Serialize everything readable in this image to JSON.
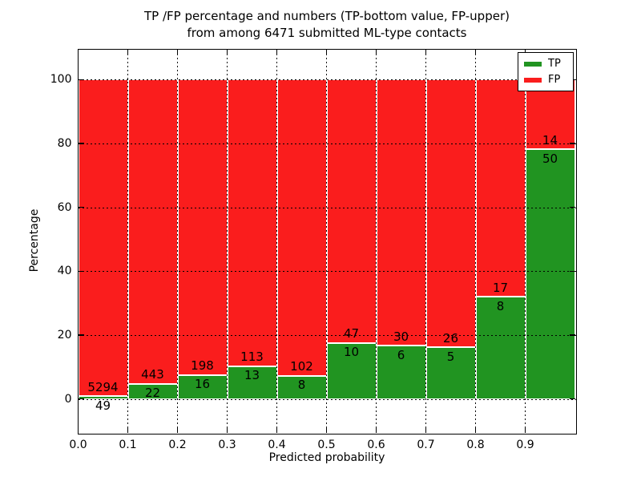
{
  "figure": {
    "title_line1": "TP /FP percentage and numbers (TP-bottom value, FP-upper)",
    "title_line2": "from among 6471 submitted ML-type contacts",
    "xlabel": "Predicted probability",
    "ylabel": "Percentage"
  },
  "legend": {
    "position": "upper right",
    "entries": [
      {
        "label": "TP",
        "color": "#219421"
      },
      {
        "label": "FP",
        "color": "#fa1d1d"
      }
    ]
  },
  "chart_data": {
    "type": "bar",
    "stacked": true,
    "normalized_to_percent": true,
    "title": "TP /FP percentage and numbers (TP-bottom value, FP-upper) from among 6471 submitted ML-type contacts",
    "xlabel": "Predicted probability",
    "ylabel": "Percentage",
    "total_contacts": 6471,
    "bins": [
      "0.0-0.1",
      "0.1-0.2",
      "0.2-0.3",
      "0.3-0.4",
      "0.4-0.5",
      "0.5-0.6",
      "0.6-0.7",
      "0.7-0.8",
      "0.8-0.9",
      "0.9-1.0"
    ],
    "x_tick_labels": [
      "0.0",
      "0.1",
      "0.2",
      "0.3",
      "0.4",
      "0.5",
      "0.6",
      "0.7",
      "0.8",
      "0.9"
    ],
    "y_tick_values": [
      0,
      20,
      40,
      60,
      80,
      100
    ],
    "xlim": [
      0.0,
      1.0
    ],
    "ylim": [
      -10.5,
      109.5
    ],
    "grid": "dotted, both axes, drawn over bars",
    "legend_position": "upper right",
    "series": [
      {
        "name": "TP",
        "color": "#219421",
        "counts": [
          49,
          22,
          16,
          13,
          8,
          10,
          6,
          5,
          8,
          50
        ]
      },
      {
        "name": "FP",
        "color": "#fa1d1d",
        "counts": [
          5294,
          443,
          198,
          113,
          102,
          47,
          30,
          26,
          17,
          14
        ]
      }
    ],
    "tp_percent_heights": [
      0.92,
      4.73,
      7.48,
      10.32,
      7.27,
      17.54,
      16.67,
      16.13,
      32.0,
      78.13
    ],
    "bar_value_labels": "FP count printed just above TP/FP boundary, TP count just below it"
  }
}
